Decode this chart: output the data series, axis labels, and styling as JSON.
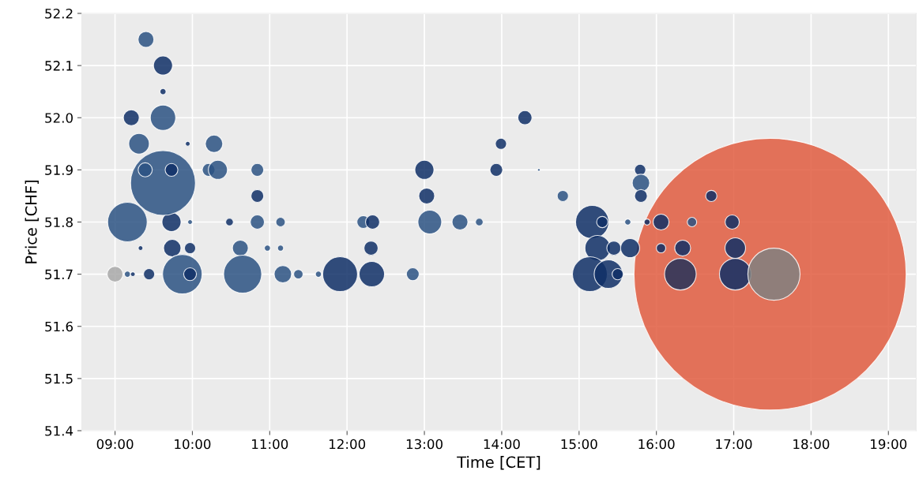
{
  "chart_data": {
    "type": "bubble",
    "xlabel": "Time [CET]",
    "ylabel": "Price [CHF]",
    "xlim": [
      8.57,
      19.36
    ],
    "ylim": [
      51.4,
      52.2
    ],
    "xticks": [
      {
        "value": 9,
        "label": "09:00"
      },
      {
        "value": 10,
        "label": "10:00"
      },
      {
        "value": 11,
        "label": "11:00"
      },
      {
        "value": 12,
        "label": "12:00"
      },
      {
        "value": 13,
        "label": "13:00"
      },
      {
        "value": 14,
        "label": "14:00"
      },
      {
        "value": 15,
        "label": "15:00"
      },
      {
        "value": 16,
        "label": "16:00"
      },
      {
        "value": 17,
        "label": "17:00"
      },
      {
        "value": 18,
        "label": "18:00"
      },
      {
        "value": 19,
        "label": "19:00"
      }
    ],
    "yticks": [
      {
        "value": 51.4,
        "label": "51.4"
      },
      {
        "value": 51.5,
        "label": "51.5"
      },
      {
        "value": 51.6,
        "label": "51.6"
      },
      {
        "value": 51.7,
        "label": "51.7"
      },
      {
        "value": 51.8,
        "label": "51.8"
      },
      {
        "value": 51.9,
        "label": "51.9"
      },
      {
        "value": 52.0,
        "label": "52.0"
      },
      {
        "value": 52.1,
        "label": "52.1"
      },
      {
        "value": 52.2,
        "label": "52.2"
      }
    ],
    "grid": true,
    "series": [
      {
        "x": [
          17.47,
          9.0,
          9.16,
          9.23,
          9.44,
          9.16,
          9.33,
          9.73,
          9.97,
          9.74,
          9.97,
          9.87,
          9.97,
          9.62,
          9.39,
          9.73,
          9.31,
          9.94,
          10.28,
          9.21,
          9.62,
          9.62,
          9.62,
          9.4,
          10.21,
          10.33,
          10.84,
          10.84,
          10.48,
          10.84,
          11.14,
          10.62,
          10.97,
          11.14,
          10.65,
          11.17,
          11.37,
          11.63,
          11.91,
          12.32,
          12.21,
          12.33,
          12.31,
          12.85,
          13.0,
          13.03,
          13.07,
          13.46,
          13.71,
          13.93,
          13.99,
          14.3,
          14.48,
          14.79,
          15.17,
          15.3,
          15.24,
          15.45,
          15.66,
          15.14,
          15.38,
          15.5,
          15.79,
          15.8,
          15.8,
          15.63,
          15.88,
          16.06,
          16.46,
          16.71,
          16.98,
          16.06,
          16.34,
          16.31,
          17.02,
          17.02,
          17.52
        ],
        "values": [
          51.7,
          51.7,
          51.7,
          51.7,
          51.7,
          51.8,
          51.75,
          51.8,
          51.8,
          51.75,
          51.75,
          51.7,
          51.7,
          51.875,
          51.9,
          51.9,
          51.95,
          51.95,
          51.95,
          52.0,
          52.0,
          52.05,
          52.1,
          52.15,
          51.9,
          51.9,
          51.9,
          51.85,
          51.8,
          51.8,
          51.8,
          51.75,
          51.75,
          51.75,
          51.7,
          51.7,
          51.7,
          51.7,
          51.7,
          51.7,
          51.8,
          51.8,
          51.75,
          51.7,
          51.9,
          51.85,
          51.8,
          51.8,
          51.8,
          51.9,
          51.95,
          52.0,
          51.9,
          51.85,
          51.8,
          51.8,
          51.75,
          51.75,
          51.75,
          51.7,
          51.7,
          51.7,
          51.9,
          51.875,
          51.85,
          51.8,
          51.8,
          51.8,
          51.8,
          51.85,
          51.8,
          51.75,
          51.75,
          51.7,
          51.75,
          51.7,
          51.7
        ],
        "sizes": [
          1,
          0.0034,
          0.0005,
          0.0003,
          0.0017,
          0.0211,
          0.0003,
          0.0049,
          0.0003,
          0.0041,
          0.0017,
          0.0211,
          0.0022,
          0.0568,
          0.0027,
          0.0022,
          0.0057,
          0.0003,
          0.0041,
          0.0034,
          0.0087,
          0.0005,
          0.0049,
          0.0034,
          0.0022,
          0.0049,
          0.0022,
          0.0022,
          0.0008,
          0.0027,
          0.0012,
          0.0034,
          0.0005,
          0.0005,
          0.0195,
          0.0041,
          0.0012,
          0.0005,
          0.0164,
          0.0087,
          0.0022,
          0.0027,
          0.0027,
          0.0022,
          0.0049,
          0.0034,
          0.0076,
          0.0034,
          0.0008,
          0.0022,
          0.0017,
          0.0027,
          0.0001,
          0.0017,
          0.0149,
          0.0017,
          0.0087,
          0.0027,
          0.0049,
          0.0164,
          0.011,
          0.0017,
          0.0017,
          0.0041,
          0.0022,
          0.0005,
          0.0005,
          0.0034,
          0.0012,
          0.0017,
          0.0027,
          0.0012,
          0.0034,
          0.0135,
          0.0057,
          0.0135,
          0.0368
        ],
        "colors": [
          "#e05c40",
          "#a8a8a8",
          "#2c5282",
          "#0f2f66",
          "#0f2f66",
          "#2c5282",
          "#0f2f66",
          "#0f2f66",
          "#2c5282",
          "#0f2f66",
          "#0f2f66",
          "#2c5282",
          "#0f2f66",
          "#2c5282",
          "#2c5282",
          "#0f2f66",
          "#2c5282",
          "#0f2f66",
          "#2c5282",
          "#0f2f66",
          "#2c5282",
          "#0f2f66",
          "#0f2f66",
          "#2c5282",
          "#2c5282",
          "#2c5282",
          "#2c5282",
          "#0f2f66",
          "#0f2f66",
          "#2c5282",
          "#2c5282",
          "#2c5282",
          "#2c5282",
          "#2c5282",
          "#2c5282",
          "#2c5282",
          "#2c5282",
          "#2c5282",
          "#0f2f66",
          "#0f2f66",
          "#2c5282",
          "#0f2f66",
          "#0f2f66",
          "#2c5282",
          "#0f2f66",
          "#0f2f66",
          "#2c5282",
          "#2c5282",
          "#2c5282",
          "#0f2f66",
          "#0f2f66",
          "#0f2f66",
          "#2c5282",
          "#2c5282",
          "#0f2f66",
          "#0f2f66",
          "#0f2f66",
          "#0f2f66",
          "#0f2f66",
          "#0f2f66",
          "#0f2f66",
          "#0f2f66",
          "#0f2f66",
          "#2c5282",
          "#0f2f66",
          "#2c5282",
          "#0f2f66",
          "#0f2f66",
          "#2c5282",
          "#0f2f66",
          "#0f2f66",
          "#0f2f66",
          "#0f2f66",
          "#24335a",
          "#0f2f66",
          "#0f2f66",
          "#808080"
        ]
      }
    ]
  }
}
